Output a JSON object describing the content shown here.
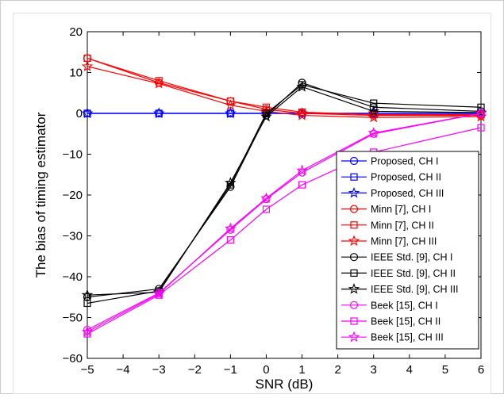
{
  "chart_data": {
    "type": "line",
    "title": "",
    "xlabel": "SNR (dB)",
    "ylabel": "The bias of timing estimator",
    "x": [
      -5,
      -3,
      -1,
      0,
      1,
      3,
      6
    ],
    "xlim": [
      -5,
      6
    ],
    "ylim": [
      -60,
      20
    ],
    "xticks": [
      "−5",
      "−4",
      "−3",
      "−2",
      "−1",
      "0",
      "1",
      "2",
      "3",
      "4",
      "5",
      "6"
    ],
    "yticks": [
      "20",
      "10",
      "0",
      "−10",
      "−20",
      "−30",
      "−40",
      "−50",
      "−60"
    ],
    "grid": false,
    "legend_position": "lower-right",
    "series": [
      {
        "name": "Proposed, CH I",
        "color": "#0000ff",
        "marker": "circle",
        "values": [
          0,
          0,
          0,
          0,
          0,
          0,
          0
        ]
      },
      {
        "name": "Proposed, CH II",
        "color": "#0000ff",
        "marker": "square",
        "values": [
          0,
          0,
          0,
          0,
          0,
          0,
          0
        ]
      },
      {
        "name": "Proposed, CH III",
        "color": "#0000ff",
        "marker": "star",
        "values": [
          0,
          0,
          0,
          0,
          0,
          0,
          0
        ]
      },
      {
        "name": "Minn [7], CH I",
        "color": "#ff0000",
        "marker": "circle",
        "values": [
          13.5,
          7.5,
          3,
          1,
          0,
          -0.5,
          -0.5
        ]
      },
      {
        "name": "Minn [7], CH II",
        "color": "#ff0000",
        "marker": "square",
        "values": [
          13.5,
          8,
          3,
          1.5,
          0.3,
          -0.3,
          -0.3
        ]
      },
      {
        "name": "Minn [7], CH III",
        "color": "#ff0000",
        "marker": "star",
        "values": [
          11.5,
          7.3,
          2,
          0.5,
          -0.5,
          -1,
          -0.8
        ]
      },
      {
        "name": "IEEE Std. [9], CH I",
        "color": "#000000",
        "marker": "circle",
        "values": [
          -45,
          -43,
          -18,
          -0.5,
          7.5,
          1.5,
          0.5
        ]
      },
      {
        "name": "IEEE Std. [9], CH II",
        "color": "#000000",
        "marker": "square",
        "values": [
          -46.5,
          -43.5,
          -17.5,
          0,
          7,
          2.5,
          1.5
        ]
      },
      {
        "name": "IEEE Std. [9], CH III",
        "color": "#000000",
        "marker": "star",
        "values": [
          -44.5,
          -43.8,
          -17,
          -0.8,
          6.5,
          0.5,
          0.2
        ]
      },
      {
        "name": "Beek [15], CH I",
        "color": "#ff00ff",
        "marker": "circle",
        "values": [
          -53,
          -44,
          -28.5,
          -21,
          -14.5,
          -5,
          0
        ]
      },
      {
        "name": "Beek [15], CH II",
        "color": "#ff00ff",
        "marker": "square",
        "values": [
          -54,
          -44.5,
          -31,
          -23.5,
          -17.5,
          -9.5,
          -3.5
        ]
      },
      {
        "name": "Beek [15], CH III",
        "color": "#ff00ff",
        "marker": "star",
        "values": [
          -53.5,
          -44.2,
          -28.2,
          -20.8,
          -14,
          -4.8,
          0
        ]
      }
    ]
  }
}
